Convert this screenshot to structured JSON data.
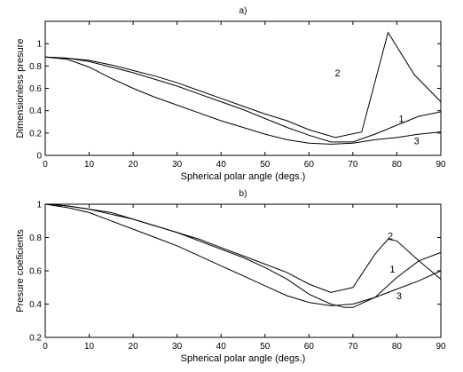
{
  "chart_data": [
    {
      "type": "line",
      "title": "a)",
      "xlabel": "Spherical polar angle (degs.)",
      "ylabel": "Dimensionless presure",
      "xlim": [
        0,
        90
      ],
      "ylim": [
        0,
        1.2
      ],
      "xticks": [
        0,
        10,
        20,
        30,
        40,
        50,
        60,
        70,
        80,
        90
      ],
      "yticks": [
        0,
        0.2,
        0.4,
        0.6,
        0.8,
        1
      ],
      "ytick_labels": [
        "0",
        "0.2",
        "0.4",
        "0.6",
        "0.8",
        "1"
      ],
      "grid": false,
      "series": [
        {
          "label": "1",
          "label_at": [
            81,
            0.33
          ],
          "x": [
            0,
            5,
            10,
            15,
            20,
            25,
            30,
            35,
            40,
            45,
            50,
            55,
            60,
            65,
            70,
            75,
            80,
            85,
            90
          ],
          "y": [
            0.88,
            0.87,
            0.84,
            0.79,
            0.74,
            0.68,
            0.62,
            0.55,
            0.48,
            0.41,
            0.33,
            0.25,
            0.18,
            0.12,
            0.12,
            0.19,
            0.27,
            0.35,
            0.39
          ]
        },
        {
          "label": "2",
          "label_at": [
            66.5,
            0.74
          ],
          "x": [
            0,
            5,
            10,
            15,
            20,
            25,
            30,
            35,
            40,
            45,
            50,
            55,
            60,
            66,
            72,
            78,
            84,
            90
          ],
          "y": [
            0.88,
            0.87,
            0.85,
            0.81,
            0.76,
            0.71,
            0.65,
            0.58,
            0.51,
            0.44,
            0.37,
            0.31,
            0.23,
            0.16,
            0.21,
            1.1,
            0.72,
            0.48
          ]
        },
        {
          "label": "3",
          "label_at": [
            84.5,
            0.13
          ],
          "x": [
            0,
            5,
            10,
            15,
            20,
            25,
            30,
            35,
            40,
            45,
            50,
            55,
            60,
            65,
            70,
            75,
            80,
            85,
            90
          ],
          "y": [
            0.88,
            0.86,
            0.79,
            0.69,
            0.6,
            0.52,
            0.45,
            0.38,
            0.31,
            0.25,
            0.19,
            0.14,
            0.11,
            0.1,
            0.11,
            0.14,
            0.16,
            0.19,
            0.21
          ]
        }
      ]
    },
    {
      "type": "line",
      "title": "b)",
      "xlabel": "Spherical polar angle (degs.)",
      "ylabel": "Presure coeficients",
      "xlim": [
        0,
        90
      ],
      "ylim": [
        0.2,
        1
      ],
      "xticks": [
        0,
        10,
        20,
        30,
        40,
        50,
        60,
        70,
        80,
        90
      ],
      "yticks": [
        0.2,
        0.4,
        0.6,
        0.8,
        1
      ],
      "ytick_labels": [
        "0.2",
        "0.4",
        "0.6",
        "0.8",
        "1"
      ],
      "grid": false,
      "series": [
        {
          "label": "1",
          "label_at": [
            79,
            0.61
          ],
          "x": [
            0,
            5,
            10,
            15,
            20,
            25,
            30,
            35,
            40,
            45,
            50,
            55,
            60,
            65,
            68,
            70,
            75,
            80,
            85,
            90
          ],
          "y": [
            1.0,
            0.99,
            0.97,
            0.94,
            0.91,
            0.87,
            0.83,
            0.78,
            0.73,
            0.68,
            0.62,
            0.55,
            0.46,
            0.4,
            0.38,
            0.38,
            0.44,
            0.56,
            0.66,
            0.71
          ]
        },
        {
          "label": "2",
          "label_at": [
            78.5,
            0.81
          ],
          "x": [
            0,
            5,
            10,
            15,
            20,
            25,
            30,
            35,
            40,
            45,
            50,
            55,
            60,
            65,
            70,
            75,
            78,
            80,
            85,
            90
          ],
          "y": [
            1.0,
            0.99,
            0.97,
            0.95,
            0.91,
            0.87,
            0.83,
            0.79,
            0.74,
            0.69,
            0.64,
            0.59,
            0.52,
            0.47,
            0.5,
            0.7,
            0.79,
            0.78,
            0.66,
            0.55
          ]
        },
        {
          "label": "3",
          "label_at": [
            80.5,
            0.45
          ],
          "x": [
            0,
            5,
            10,
            15,
            20,
            25,
            30,
            35,
            40,
            45,
            50,
            55,
            60,
            65,
            70,
            75,
            80,
            85,
            90
          ],
          "y": [
            1.0,
            0.98,
            0.95,
            0.9,
            0.85,
            0.8,
            0.75,
            0.69,
            0.63,
            0.57,
            0.51,
            0.45,
            0.41,
            0.39,
            0.4,
            0.44,
            0.49,
            0.54,
            0.6
          ]
        }
      ]
    }
  ]
}
